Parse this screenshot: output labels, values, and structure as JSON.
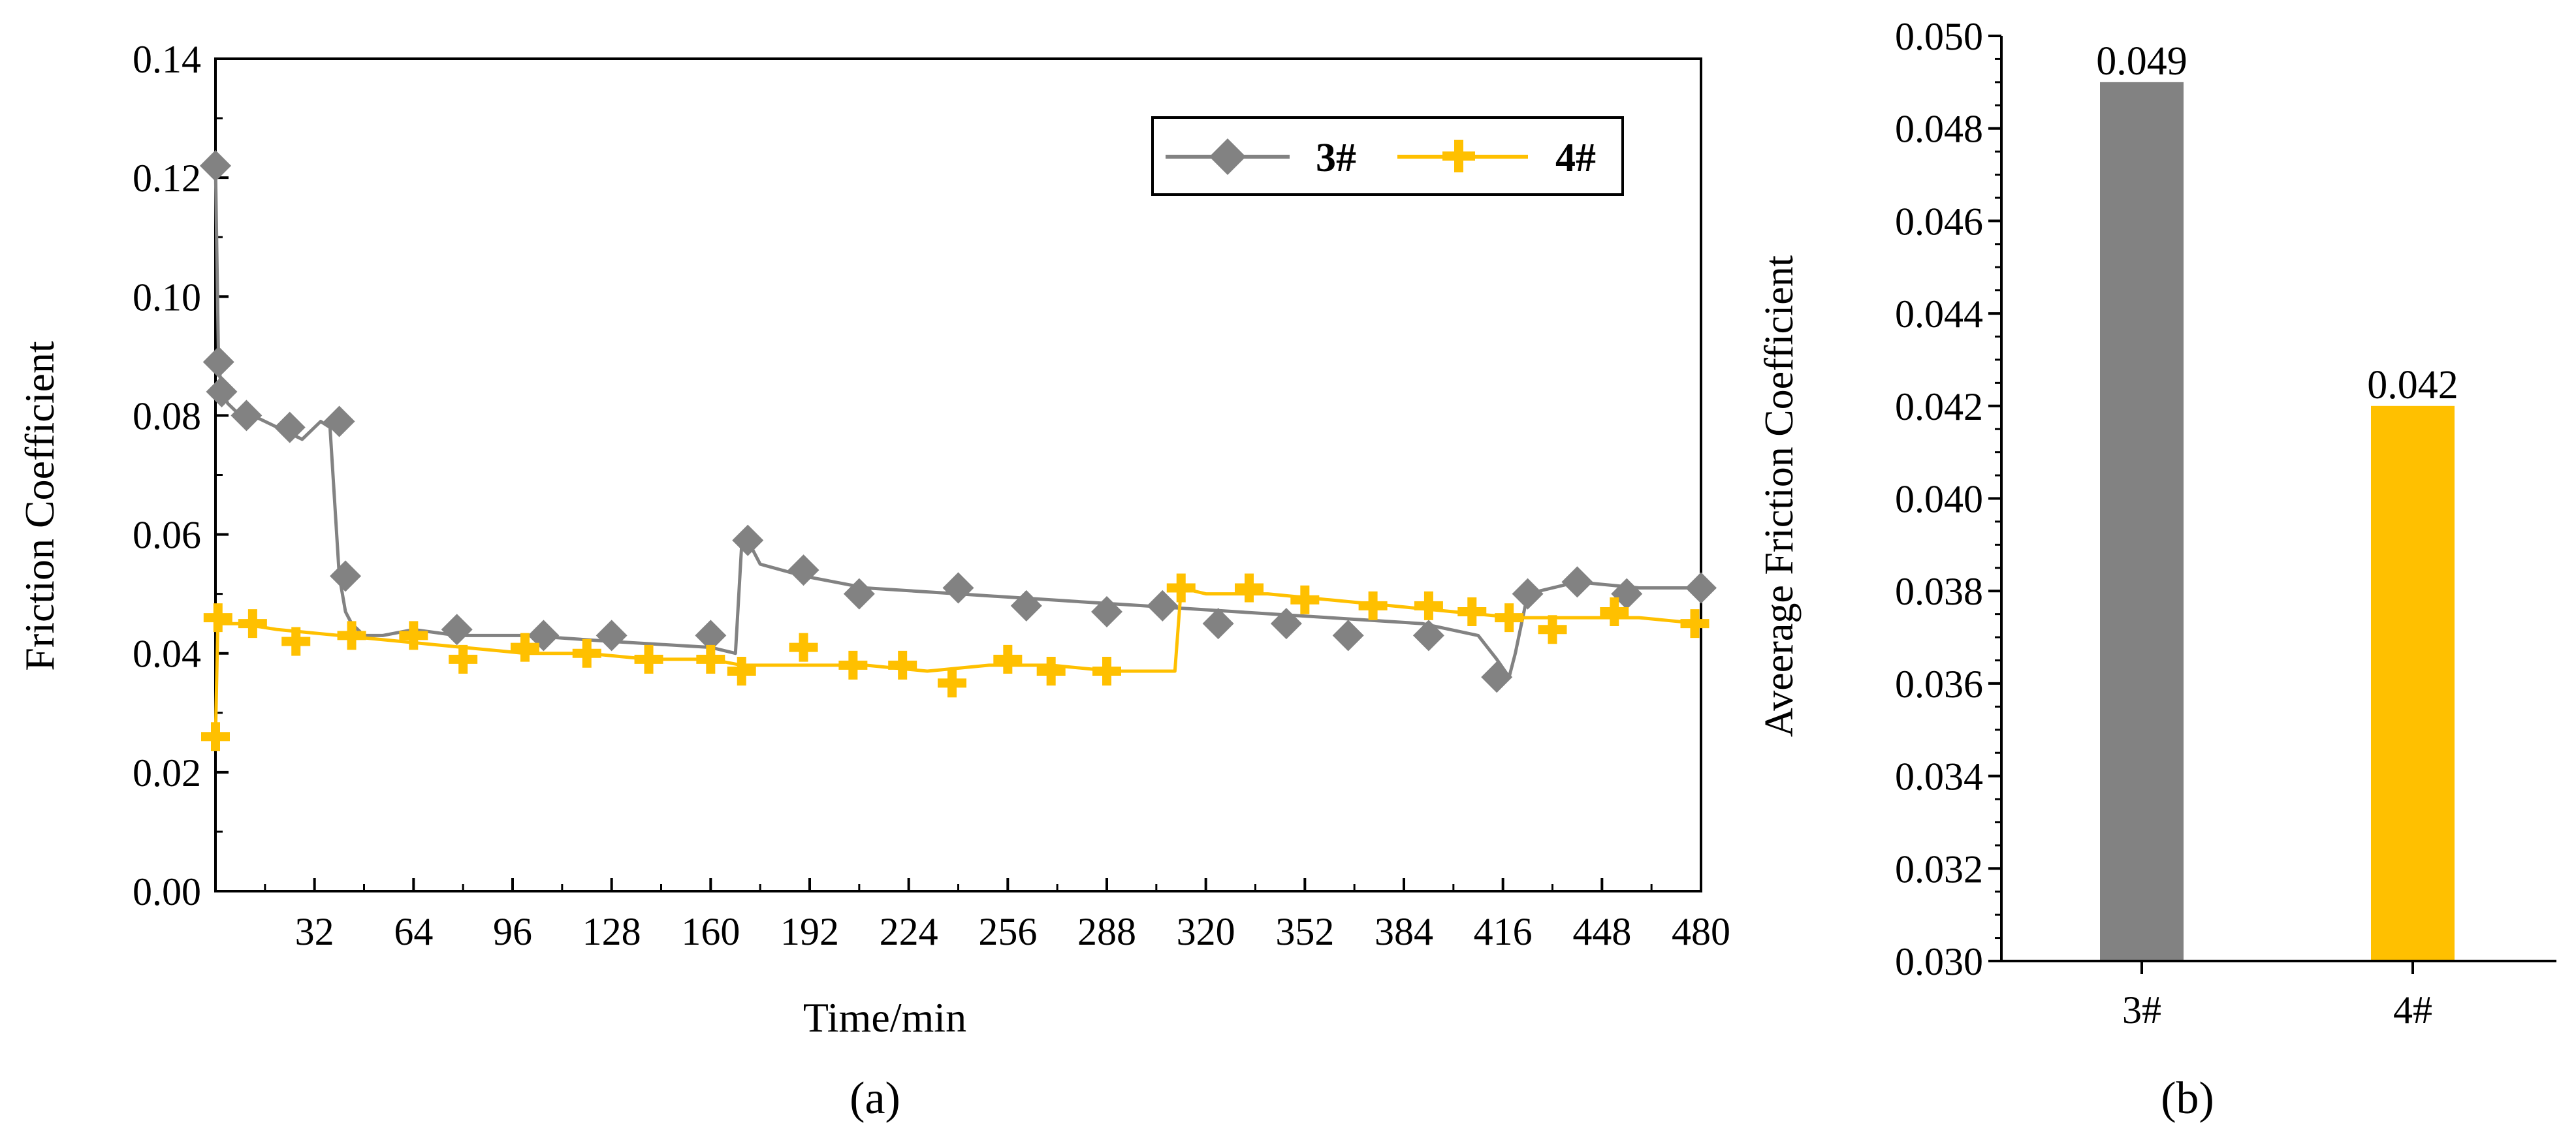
{
  "colors": {
    "series3": "#828282",
    "series4": "#FFC000",
    "axis": "#000000"
  },
  "panel_labels": {
    "a": "(a)",
    "b": "(b)"
  },
  "chart_data": [
    {
      "type": "line",
      "panel": "a",
      "xlabel": "Time/min",
      "ylabel": "Friction Coefficient",
      "xlim": [
        0,
        480
      ],
      "ylim": [
        0,
        0.14
      ],
      "xticks": [
        "32",
        "64",
        "96",
        "128",
        "160",
        "192",
        "224",
        "256",
        "288",
        "320",
        "352",
        "384",
        "416",
        "448",
        "480"
      ],
      "yticks": [
        "0.00",
        "0.02",
        "0.04",
        "0.06",
        "0.08",
        "0.10",
        "0.12",
        "0.14"
      ],
      "legend": {
        "position": "top-right",
        "entries": [
          "3#",
          "4#"
        ]
      },
      "series": [
        {
          "name": "3#",
          "marker": "diamond",
          "x": [
            0,
            1,
            2,
            4,
            8,
            12,
            20,
            28,
            34,
            37,
            40,
            42,
            44,
            48,
            54,
            64,
            78,
            100,
            128,
            160,
            168,
            170,
            172,
            176,
            190,
            210,
            240,
            270,
            300,
            330,
            360,
            390,
            408,
            414,
            418,
            420,
            424,
            440,
            460,
            480
          ],
          "values": [
            0.122,
            0.089,
            0.084,
            0.082,
            0.08,
            0.08,
            0.078,
            0.076,
            0.079,
            0.078,
            0.053,
            0.047,
            0.045,
            0.043,
            0.043,
            0.044,
            0.043,
            0.043,
            0.042,
            0.041,
            0.04,
            0.058,
            0.059,
            0.055,
            0.053,
            0.051,
            0.05,
            0.049,
            0.048,
            0.047,
            0.046,
            0.045,
            0.043,
            0.039,
            0.036,
            0.04,
            0.05,
            0.052,
            0.051,
            0.051
          ],
          "markers_x": [
            0,
            1,
            2,
            10,
            24,
            40,
            42,
            78,
            106,
            128,
            160,
            172,
            190,
            208,
            240,
            262,
            288,
            306,
            324,
            346,
            366,
            392,
            414,
            424,
            440,
            456,
            480
          ],
          "markers_y": [
            0.122,
            0.089,
            0.084,
            0.08,
            0.078,
            0.079,
            0.053,
            0.044,
            0.043,
            0.043,
            0.043,
            0.059,
            0.054,
            0.05,
            0.051,
            0.048,
            0.047,
            0.048,
            0.045,
            0.045,
            0.043,
            0.043,
            0.036,
            0.05,
            0.052,
            0.05,
            0.051
          ]
        },
        {
          "name": "4#",
          "marker": "plus",
          "x": [
            0,
            0.8,
            1.5,
            8,
            20,
            40,
            60,
            80,
            100,
            120,
            140,
            160,
            170,
            190,
            210,
            230,
            250,
            270,
            290,
            310,
            312,
            320,
            340,
            360,
            380,
            400,
            420,
            440,
            460,
            480
          ],
          "values": [
            0.026,
            0.046,
            0.045,
            0.045,
            0.044,
            0.043,
            0.042,
            0.041,
            0.04,
            0.04,
            0.039,
            0.039,
            0.038,
            0.038,
            0.038,
            0.037,
            0.038,
            0.038,
            0.037,
            0.037,
            0.051,
            0.05,
            0.05,
            0.049,
            0.048,
            0.047,
            0.046,
            0.046,
            0.046,
            0.045
          ],
          "markers_x": [
            0,
            0.8,
            12,
            26,
            44,
            64,
            80,
            100,
            120,
            140,
            160,
            170,
            190,
            206,
            222,
            238,
            256,
            270,
            288,
            312,
            334,
            352,
            374,
            392,
            406,
            418,
            432,
            452,
            478
          ],
          "markers_y": [
            0.026,
            0.046,
            0.045,
            0.042,
            0.043,
            0.043,
            0.039,
            0.041,
            0.04,
            0.039,
            0.039,
            0.037,
            0.041,
            0.038,
            0.038,
            0.035,
            0.039,
            0.037,
            0.037,
            0.051,
            0.051,
            0.049,
            0.048,
            0.048,
            0.047,
            0.046,
            0.044,
            0.047,
            0.045
          ]
        }
      ]
    },
    {
      "type": "bar",
      "panel": "b",
      "categories": [
        "3#",
        "4#"
      ],
      "values": [
        0.049,
        0.042
      ],
      "data_labels": [
        "0.049",
        "0.042"
      ],
      "ylabel": "Aveerage Friction Coefficient",
      "xlabel": "",
      "ylim": [
        0.03,
        0.05
      ],
      "yticks": [
        "0.030",
        "0.032",
        "0.034",
        "0.036",
        "0.038",
        "0.040",
        "0.042",
        "0.044",
        "0.046",
        "0.048",
        "0.050"
      ]
    }
  ]
}
